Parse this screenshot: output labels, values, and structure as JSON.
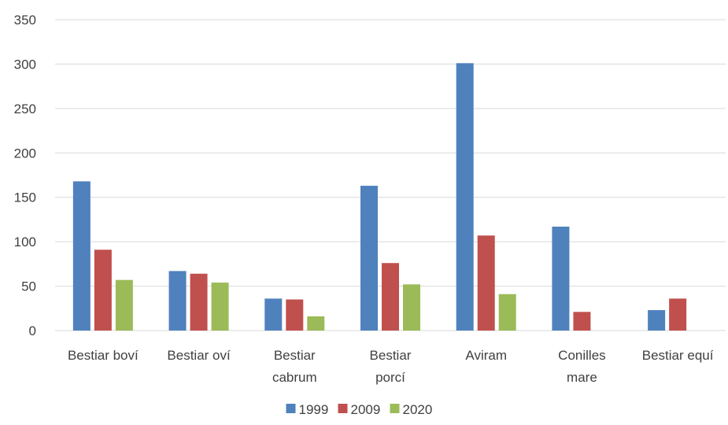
{
  "chart_data": {
    "type": "bar",
    "title": "",
    "xlabel": "",
    "ylabel": "",
    "categories": [
      [
        "Bestiar boví"
      ],
      [
        "Bestiar oví"
      ],
      [
        "Bestiar",
        "cabrum"
      ],
      [
        "Bestiar",
        "porcí"
      ],
      [
        "Aviram"
      ],
      [
        "Conilles",
        "mare"
      ],
      [
        "Bestiar equí"
      ]
    ],
    "series": [
      {
        "name": "1999",
        "color": "#4F81BD",
        "values": [
          168,
          67,
          36,
          163,
          301,
          117,
          23
        ]
      },
      {
        "name": "2009",
        "color": "#C0504D",
        "values": [
          91,
          64,
          35,
          76,
          107,
          21,
          36
        ]
      },
      {
        "name": "2020",
        "color": "#9BBB59",
        "values": [
          57,
          54,
          16,
          52,
          41,
          0,
          0
        ]
      }
    ],
    "ylim": [
      0,
      350
    ],
    "yticks": [
      0,
      50,
      100,
      150,
      200,
      250,
      300,
      350
    ],
    "grid": true,
    "legend_position": "bottom"
  }
}
